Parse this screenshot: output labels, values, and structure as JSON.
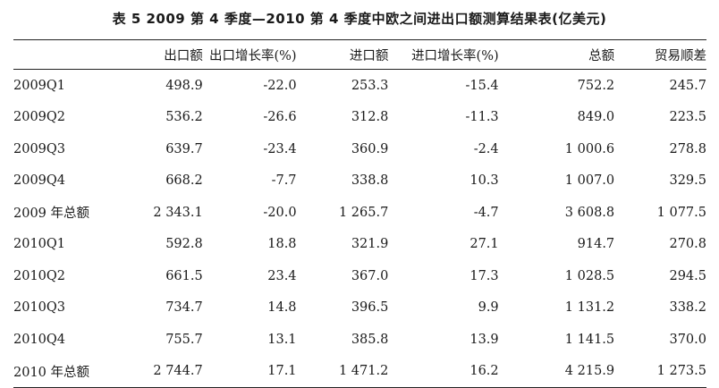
{
  "caption": "表 5  2009 第 4 季度—2010 第 4 季度中欧之间进出口额测算结果表(亿美元)",
  "headers": [
    "",
    "出口额",
    "出口增长率(%)",
    "进口额",
    "进口增长率(%)",
    "总额",
    "贸易顺差"
  ],
  "rows": [
    [
      "2009Q1",
      "498.9",
      "-22.0",
      "253.3",
      "-15.4",
      "752.2",
      "245.7"
    ],
    [
      "2009Q2",
      "536.2",
      "-26.6",
      "312.8",
      "-11.3",
      "849.0",
      "223.5"
    ],
    [
      "2009Q3",
      "639.7",
      "-23.4",
      "360.9",
      "-2.4",
      "1 000.6",
      "278.8"
    ],
    [
      "2009Q4",
      "668.2",
      "-7.7",
      "338.8",
      "10.3",
      "1 007.0",
      "329.5"
    ],
    [
      "2009 年总额",
      "2 343.1",
      "-20.0",
      "1 265.7",
      "-4.7",
      "3 608.8",
      "1 077.5"
    ],
    [
      "2010Q1",
      "592.8",
      "18.8",
      "321.9",
      "27.1",
      "914.7",
      "270.8"
    ],
    [
      "2010Q2",
      "661.5",
      "23.4",
      "367.0",
      "17.3",
      "1 028.5",
      "294.5"
    ],
    [
      "2010Q3",
      "734.7",
      "14.8",
      "396.5",
      "9.9",
      "1 131.2",
      "338.2"
    ],
    [
      "2010Q4",
      "755.7",
      "13.1",
      "385.8",
      "13.9",
      "1 141.5",
      "370.0"
    ],
    [
      "2010 年总额",
      "2 744.7",
      "17.1",
      "1 471.2",
      "16.2",
      "4 215.9",
      "1 273.5"
    ]
  ]
}
